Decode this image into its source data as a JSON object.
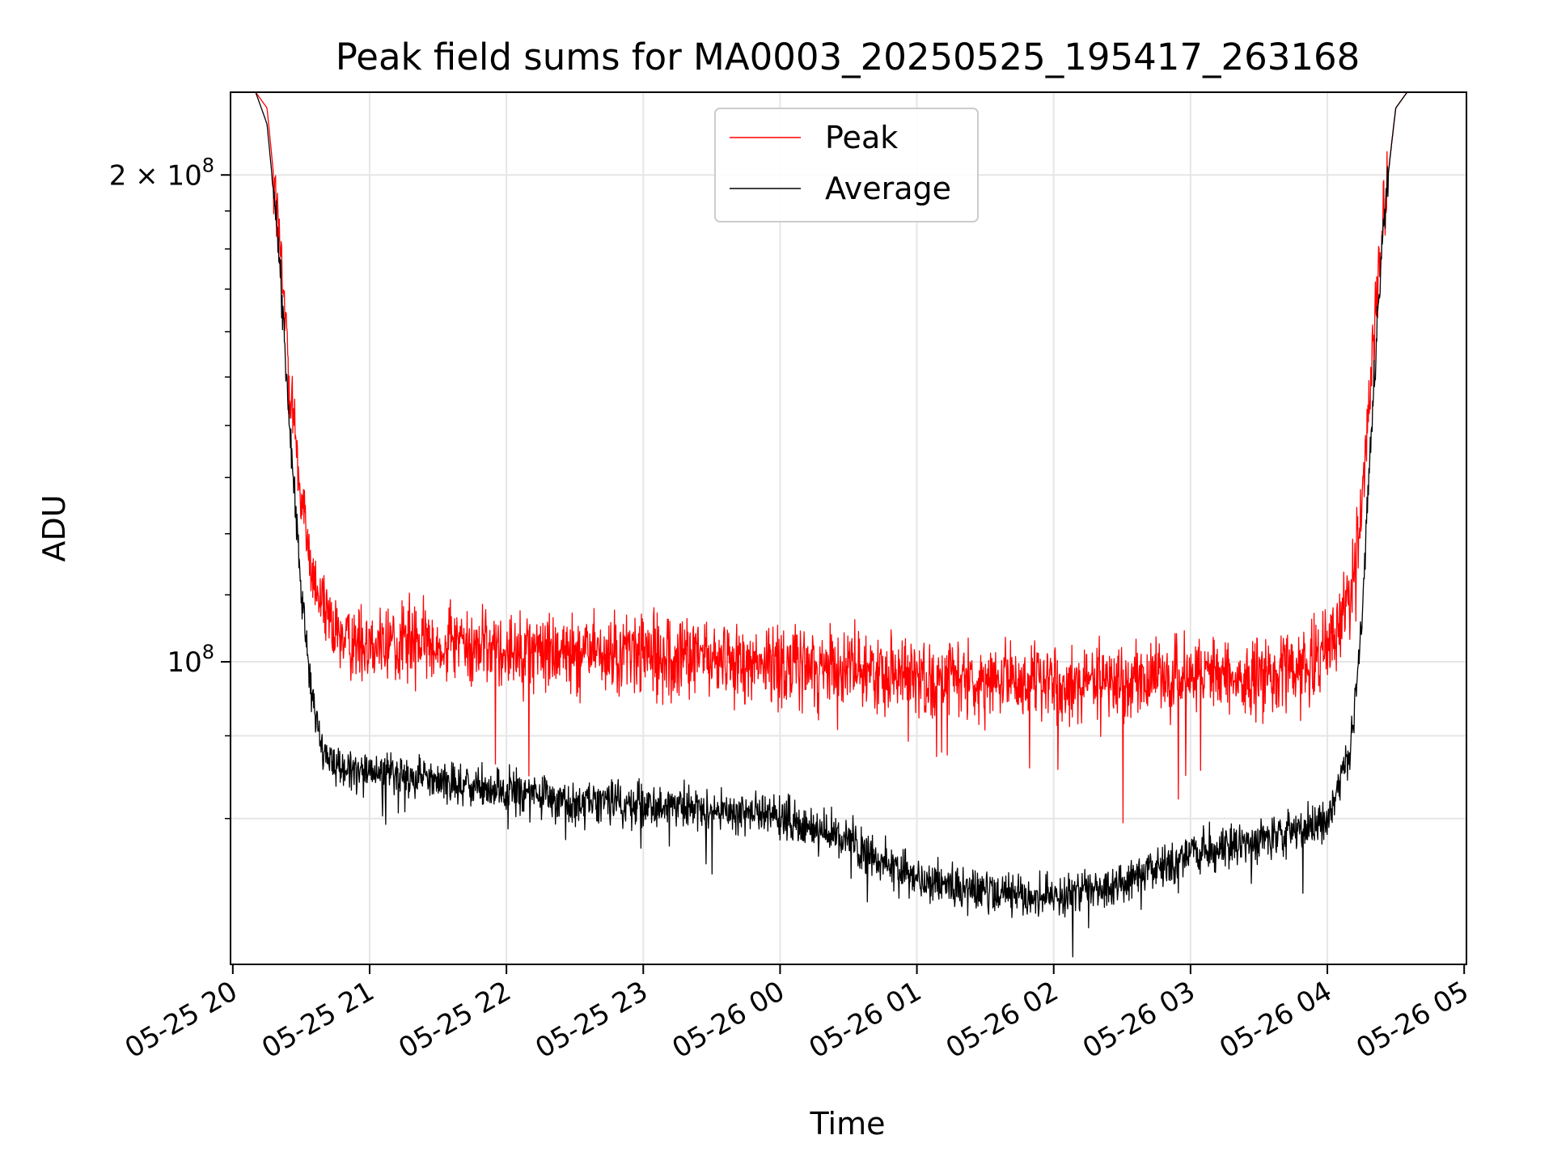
{
  "chart_data": {
    "type": "line",
    "title": "Peak field sums for MA0003_20250525_195417_263168",
    "xlabel": "Time",
    "ylabel": "ADU",
    "yscale": "log",
    "grid": true,
    "legend_position": "top-center",
    "xlim": [
      "2025-05-25 19:59",
      "2025-05-26 05:01"
    ],
    "ylim": [
      65000000,
      225000000
    ],
    "x_ticks": [
      "05-25 20",
      "05-25 21",
      "05-25 22",
      "05-25 23",
      "05-26 00",
      "05-26 01",
      "05-26 02",
      "05-26 03",
      "05-26 04",
      "05-26 05"
    ],
    "y_ticks": [
      {
        "value": 100000000,
        "mantissa": "",
        "exponent": "8",
        "label": "10^8"
      },
      {
        "value": 200000000,
        "mantissa": "2 × ",
        "exponent": "8",
        "label": "2 × 10^8"
      }
    ],
    "y_minor_ticks": [
      80000000,
      90000000,
      110000000,
      120000000,
      130000000,
      140000000,
      150000000,
      160000000,
      170000000,
      180000000,
      190000000
    ],
    "series": [
      {
        "name": "Peak",
        "color": "#ff0000",
        "x": [
          "2025-05-25 20:10",
          "2025-05-25 20:15",
          "2025-05-25 20:20",
          "2025-05-25 20:25",
          "2025-05-25 20:30",
          "2025-05-25 20:35",
          "2025-05-25 20:40",
          "2025-05-25 20:45",
          "2025-05-25 21:00",
          "2025-05-25 21:30",
          "2025-05-25 22:00",
          "2025-05-25 22:30",
          "2025-05-25 23:00",
          "2025-05-25 23:30",
          "2025-05-26 00:00",
          "2025-05-26 00:30",
          "2025-05-26 01:00",
          "2025-05-26 01:30",
          "2025-05-26 02:00",
          "2025-05-26 02:30",
          "2025-05-26 03:00",
          "2025-05-26 03:30",
          "2025-05-26 03:50",
          "2025-05-26 04:00",
          "2025-05-26 04:10",
          "2025-05-26 04:15",
          "2025-05-26 04:20",
          "2025-05-26 04:25",
          "2025-05-26 04:30",
          "2025-05-26 04:35",
          "2025-05-26 04:40",
          "2025-05-26 05:00"
        ],
        "values": [
          225000000,
          220000000,
          185000000,
          150000000,
          126000000,
          113000000,
          107000000,
          104000000,
          103000000,
          102500000,
          102000000,
          101500000,
          101000000,
          100500000,
          100000000,
          99000000,
          98000000,
          97500000,
          97000000,
          97500000,
          97500000,
          98000000,
          99000000,
          102000000,
          110000000,
          125000000,
          155000000,
          190000000,
          220000000,
          225000000,
          225000000,
          225000000
        ]
      },
      {
        "name": "Average",
        "color": "#000000",
        "x": [
          "2025-05-25 20:10",
          "2025-05-25 20:15",
          "2025-05-25 20:20",
          "2025-05-25 20:25",
          "2025-05-25 20:30",
          "2025-05-25 20:35",
          "2025-05-25 20:40",
          "2025-05-25 20:45",
          "2025-05-25 21:00",
          "2025-05-25 21:30",
          "2025-05-25 22:00",
          "2025-05-25 22:30",
          "2025-05-25 23:00",
          "2025-05-25 23:30",
          "2025-05-26 00:00",
          "2025-05-26 00:30",
          "2025-05-26 01:00",
          "2025-05-26 01:30",
          "2025-05-26 02:00",
          "2025-05-26 02:30",
          "2025-05-26 03:00",
          "2025-05-26 03:30",
          "2025-05-26 03:50",
          "2025-05-26 04:00",
          "2025-05-26 04:10",
          "2025-05-26 04:15",
          "2025-05-26 04:20",
          "2025-05-26 04:25",
          "2025-05-26 04:30",
          "2025-05-26 04:35",
          "2025-05-26 04:40",
          "2025-05-26 05:00"
        ],
        "values": [
          225000000,
          215000000,
          180000000,
          140000000,
          110000000,
          94000000,
          87500000,
          86000000,
          85500000,
          84500000,
          83000000,
          82000000,
          81500000,
          81000000,
          80000000,
          77500000,
          73500000,
          72000000,
          71500000,
          73000000,
          76000000,
          77500000,
          78500000,
          80000000,
          88000000,
          105000000,
          145000000,
          190000000,
          220000000,
          225000000,
          225000000,
          225000000
        ]
      }
    ]
  }
}
